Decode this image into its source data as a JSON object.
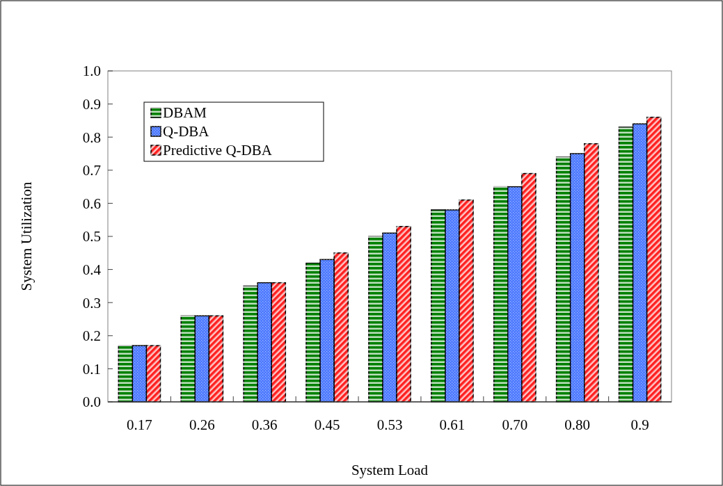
{
  "chart_data": {
    "type": "bar",
    "xlabel": "System Load",
    "ylabel": "System Utilization",
    "categories": [
      "0.17",
      "0.26",
      "0.36",
      "0.45",
      "0.53",
      "0.61",
      "0.70",
      "0.80",
      "0.9"
    ],
    "series": [
      {
        "name": "DBAM",
        "color": "#008000",
        "values": [
          0.17,
          0.26,
          0.35,
          0.42,
          0.5,
          0.58,
          0.65,
          0.74,
          0.83
        ]
      },
      {
        "name": "Q-DBA",
        "color": "#4f7bff",
        "values": [
          0.17,
          0.26,
          0.36,
          0.43,
          0.51,
          0.58,
          0.65,
          0.75,
          0.84
        ]
      },
      {
        "name": "Predictive Q-DBA",
        "color": "#ff2020",
        "values": [
          0.17,
          0.26,
          0.36,
          0.45,
          0.53,
          0.61,
          0.69,
          0.78,
          0.86
        ]
      }
    ],
    "ylim": [
      0,
      1
    ],
    "yticks": [
      {
        "value": 0,
        "label": "0.0"
      },
      {
        "value": 0.1,
        "label": "0.1"
      },
      {
        "value": 0.2,
        "label": "0.2"
      },
      {
        "value": 0.3,
        "label": "0.3"
      },
      {
        "value": 0.4,
        "label": "0.4"
      },
      {
        "value": 0.5,
        "label": "0.5"
      },
      {
        "value": 0.6,
        "label": "0.6"
      },
      {
        "value": 0.7,
        "label": "0.7"
      },
      {
        "value": 0.8,
        "label": "0.8"
      },
      {
        "value": 0.9,
        "label": "0.9"
      },
      {
        "value": 1,
        "label": "1.0"
      }
    ],
    "legend": "top left",
    "grid": false
  }
}
